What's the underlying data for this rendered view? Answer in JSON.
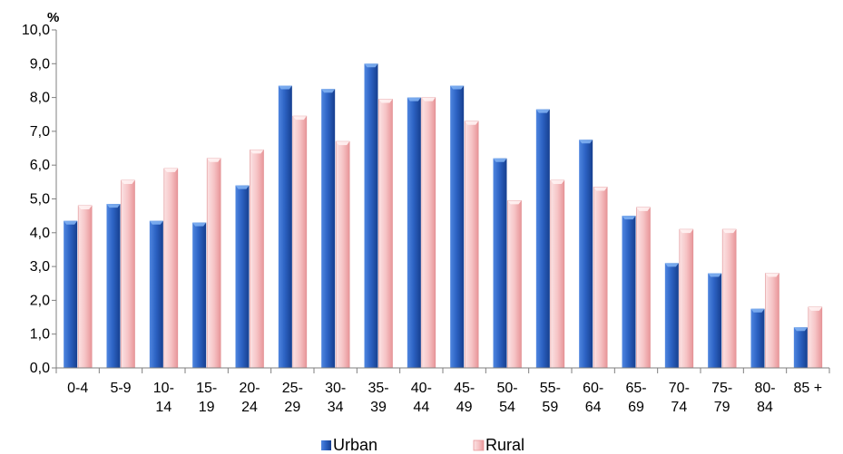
{
  "chart_data": {
    "type": "bar",
    "unit_label": "%",
    "categories": [
      [
        "0-4"
      ],
      [
        "5-9"
      ],
      [
        "10-",
        "14"
      ],
      [
        "15-",
        "19"
      ],
      [
        "20-",
        "24"
      ],
      [
        "25-",
        "29"
      ],
      [
        "30-",
        "34"
      ],
      [
        "35-",
        "39"
      ],
      [
        "40-",
        "44"
      ],
      [
        "45-",
        "49"
      ],
      [
        "50-",
        "54"
      ],
      [
        "55-",
        "59"
      ],
      [
        "60-",
        "64"
      ],
      [
        "65-",
        "69"
      ],
      [
        "70-",
        "74"
      ],
      [
        "75-",
        "79"
      ],
      [
        "80-",
        "84"
      ],
      [
        "85 +"
      ]
    ],
    "series": [
      {
        "name": "Urban",
        "color": "#2a5cb8",
        "values": [
          4.35,
          4.85,
          4.35,
          4.3,
          5.4,
          8.35,
          8.25,
          9.0,
          8.0,
          8.35,
          6.2,
          7.65,
          6.75,
          4.5,
          3.1,
          2.8,
          1.75,
          1.2
        ]
      },
      {
        "name": "Rural",
        "color": "#f4b5b8",
        "values": [
          4.8,
          5.55,
          5.9,
          6.2,
          6.45,
          7.45,
          6.7,
          7.95,
          8.0,
          7.3,
          4.95,
          5.55,
          5.35,
          4.75,
          4.1,
          4.1,
          2.8,
          1.8
        ]
      }
    ],
    "yticks": [
      "0,0",
      "1,0",
      "2,0",
      "3,0",
      "4,0",
      "5,0",
      "6,0",
      "7,0",
      "8,0",
      "9,0",
      "10,0"
    ],
    "ylim": [
      0,
      10
    ],
    "grid": false,
    "legend": "bottom"
  }
}
